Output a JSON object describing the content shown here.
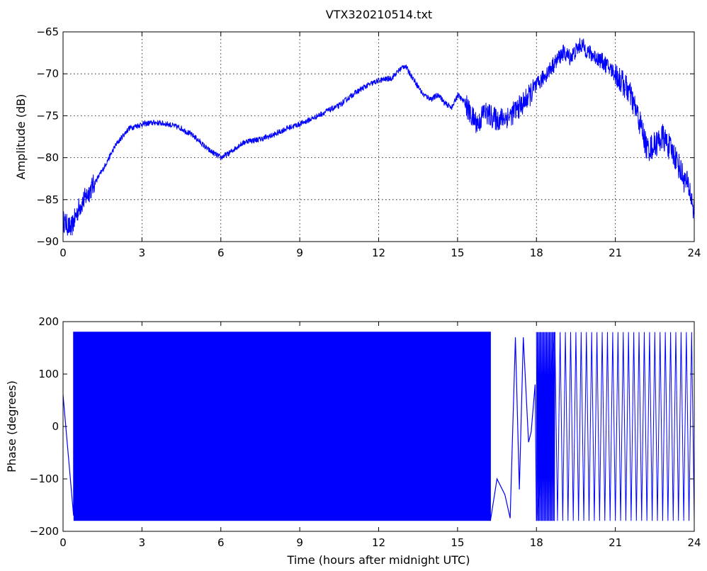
{
  "chart_data": [
    {
      "type": "line",
      "title": "VTX320210514.txt",
      "xlabel": "",
      "ylabel": "Amplitude (dB)",
      "xlim": [
        0,
        24
      ],
      "ylim": [
        -90,
        -65
      ],
      "xticks": [
        "0",
        "3",
        "6",
        "9",
        "12",
        "15",
        "18",
        "21",
        "24"
      ],
      "yticks": [
        "-90",
        "-85",
        "-80",
        "-75",
        "-70",
        "-65"
      ],
      "grid": true,
      "color": "#0000ff",
      "series": [
        {
          "x": [
            0,
            0.3,
            0.6,
            1.0,
            1.5,
            2.0,
            2.5,
            3.0,
            3.5,
            4.0,
            4.5,
            5.0,
            5.5,
            6.0,
            6.3,
            6.7,
            7.0,
            7.5,
            8.0,
            8.5,
            9.0,
            9.5,
            10.0,
            10.5,
            11.0,
            11.5,
            12.0,
            12.5,
            12.8,
            13.0,
            13.3,
            13.7,
            14.0,
            14.3,
            14.5,
            14.8,
            15.0,
            15.3,
            15.5,
            15.8,
            16.0,
            16.5,
            17.0,
            17.5,
            18.0,
            18.5,
            19.0,
            19.3,
            19.7,
            20.0,
            20.5,
            21.0,
            21.5,
            21.8,
            22.0,
            22.2,
            22.5,
            22.8,
            23.0,
            23.3,
            23.6,
            23.8,
            24.0
          ],
          "y": [
            -87.5,
            -88.5,
            -86.0,
            -84.0,
            -81.5,
            -78.5,
            -76.5,
            -76.0,
            -75.8,
            -76.0,
            -76.5,
            -77.5,
            -79.0,
            -80.0,
            -79.5,
            -78.5,
            -78.0,
            -77.8,
            -77.3,
            -76.5,
            -76.0,
            -75.3,
            -74.5,
            -73.8,
            -72.5,
            -71.5,
            -70.8,
            -70.5,
            -69.5,
            -69.0,
            -70.5,
            -72.5,
            -73.0,
            -72.5,
            -73.5,
            -74.0,
            -72.5,
            -73.5,
            -75.0,
            -76.0,
            -74.5,
            -75.5,
            -75.0,
            -73.5,
            -71.5,
            -69.5,
            -67.5,
            -68.0,
            -66.5,
            -67.5,
            -68.5,
            -70.0,
            -72.0,
            -74.5,
            -76.5,
            -79.0,
            -78.5,
            -77.5,
            -78.5,
            -80.0,
            -82.5,
            -83.5,
            -86.5
          ]
        }
      ]
    },
    {
      "type": "line",
      "title": "",
      "xlabel": "Time (hours after midnight UTC)",
      "ylabel": "Phase (degrees)",
      "xlim": [
        0,
        24
      ],
      "ylim": [
        -200,
        200
      ],
      "xticks": [
        "0",
        "3",
        "6",
        "9",
        "12",
        "15",
        "18",
        "21",
        "24"
      ],
      "yticks": [
        "-200",
        "-100",
        "0",
        "100",
        "200"
      ],
      "grid": false,
      "color": "#0000ff",
      "series": [
        {
          "x": [
            0,
            0.4,
            0.4,
            16.25,
            16.25,
            16.5,
            16.8,
            17.0,
            17.2,
            17.35,
            17.5,
            17.7,
            17.8,
            17.95,
            18.0,
            18.7
          ],
          "y": [
            60,
            -170,
            180,
            180,
            -180,
            -100,
            -130,
            -175,
            170,
            -120,
            170,
            -30,
            -10,
            80,
            -180,
            180
          ],
          "filled_band_x": [
            0.4,
            16.25
          ],
          "dense_oscillation_x": [
            18.0,
            18.7
          ],
          "oscillation_period_hours": 0.2,
          "oscillation_range_x": [
            18.7,
            24
          ]
        }
      ]
    }
  ]
}
